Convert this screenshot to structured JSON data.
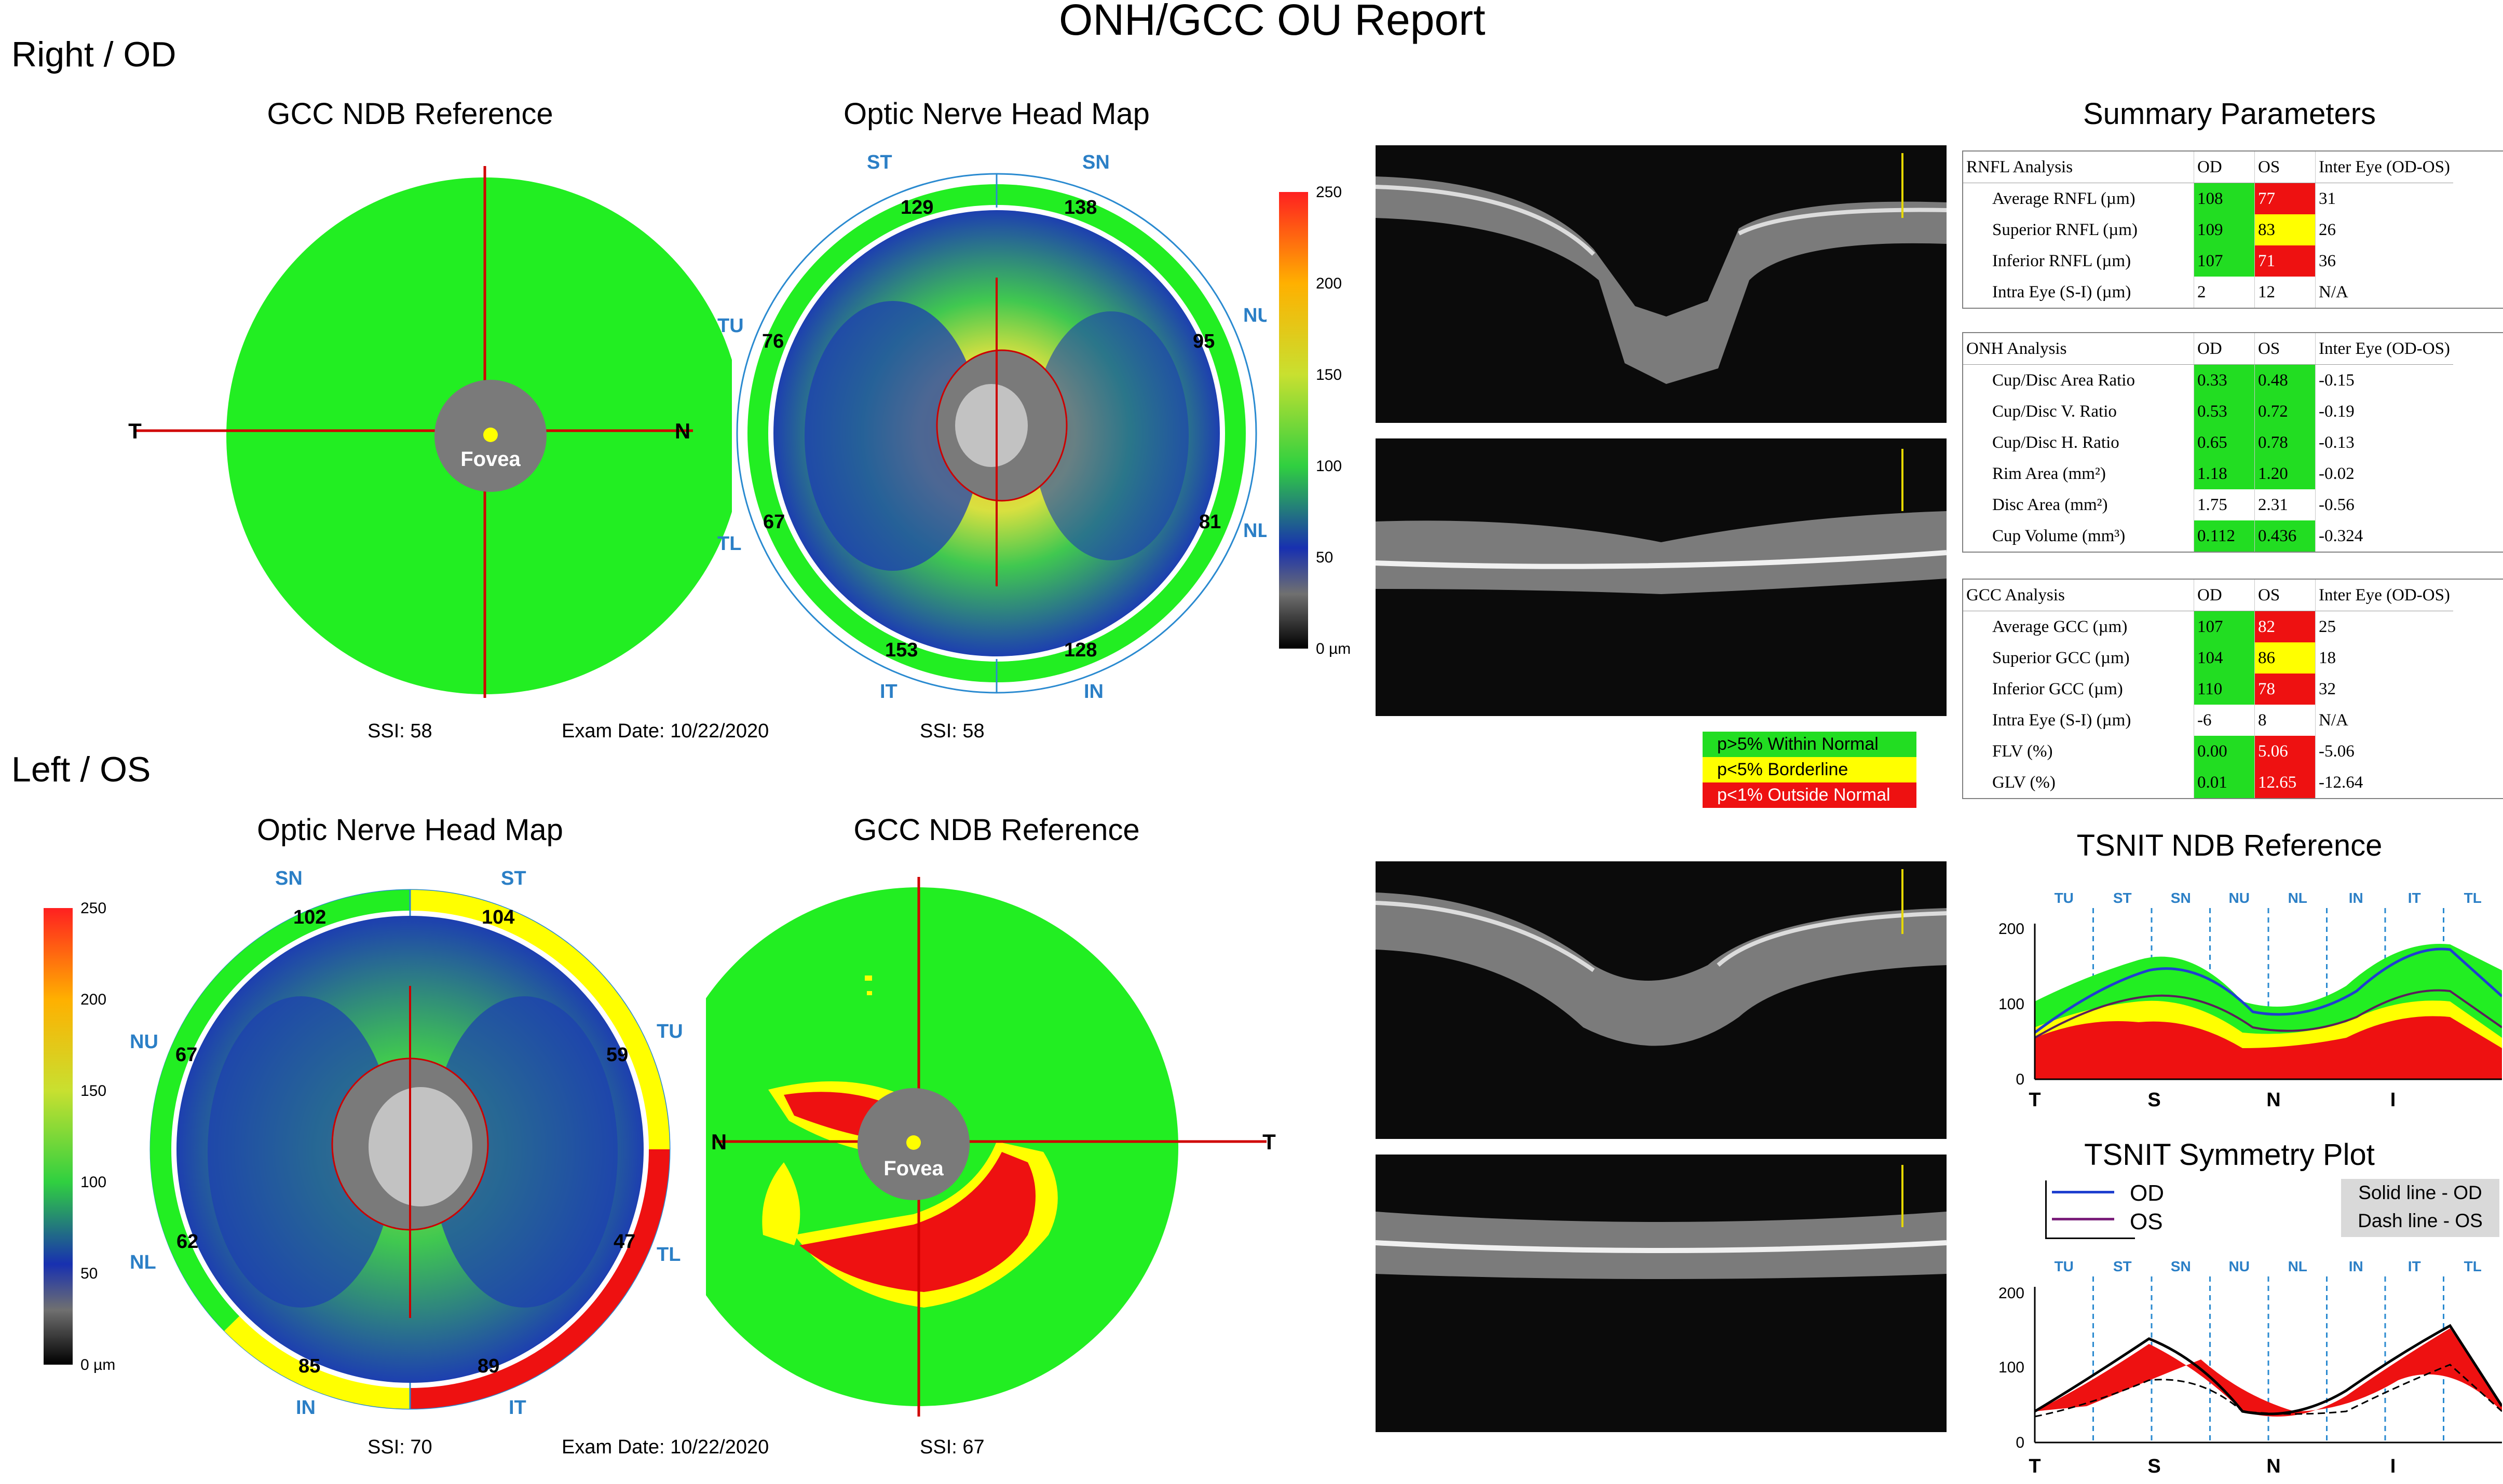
{
  "report_title": "ONH/GCC OU Report",
  "right": {
    "eye_label": "Right / OD",
    "gcc_title": "GCC NDB Reference",
    "onh_title": "Optic Nerve Head Map",
    "ssi_gcc": "SSI: 58",
    "exam_date": "Exam Date: 10/22/2020",
    "ssi_onh": "SSI: 58",
    "gcc_dir_left": "T",
    "gcc_dir_right": "N",
    "fovea": "Fovea",
    "onh_sectors": {
      "st": "ST",
      "sn": "SN",
      "nu": "NU",
      "nl": "NL",
      "in": "IN",
      "it": "IT",
      "tl": "TL",
      "tu": "TU"
    },
    "onh_values": {
      "st": "129",
      "sn": "138",
      "nu": "95",
      "nl": "81",
      "in": "128",
      "it": "153",
      "tl": "67",
      "tu": "76"
    }
  },
  "left": {
    "eye_label": "Left / OS",
    "onh_title": "Optic Nerve Head Map",
    "gcc_title": "GCC NDB Reference",
    "ssi_onh": "SSI: 70",
    "exam_date": "Exam Date: 10/22/2020",
    "ssi_gcc": "SSI: 67",
    "gcc_dir_left": "N",
    "gcc_dir_right": "T",
    "fovea": "Fovea",
    "onh_sectors": {
      "sn": "SN",
      "st": "ST",
      "tu": "TU",
      "tl": "TL",
      "it": "IT",
      "in": "IN",
      "nl": "NL",
      "nu": "NU"
    },
    "onh_values": {
      "sn": "102",
      "st": "104",
      "tu": "59",
      "tl": "47",
      "it": "89",
      "in": "85",
      "nl": "62",
      "nu": "67"
    }
  },
  "colorbar": {
    "ticks": [
      "250",
      "200",
      "150",
      "100",
      "50",
      "0 µm"
    ]
  },
  "legend": {
    "within": "p>5% Within Normal",
    "borderline": "p<5% Borderline",
    "outside": "p<1% Outside Normal",
    "colors": {
      "green": "#22dd22",
      "yellow": "#ffff00",
      "red": "#ee1111"
    }
  },
  "summary": {
    "title": "Summary Parameters",
    "rnfl": {
      "header": [
        "RNFL Analysis",
        "OD",
        "OS",
        "Inter Eye (OD-OS)"
      ],
      "rows": [
        {
          "label": "Average RNFL (µm)",
          "od": "108",
          "os": "77",
          "inter": "31",
          "odc": "g",
          "osc": "r"
        },
        {
          "label": "Superior RNFL (µm)",
          "od": "109",
          "os": "83",
          "inter": "26",
          "odc": "g",
          "osc": "y"
        },
        {
          "label": "Inferior RNFL (µm)",
          "od": "107",
          "os": "71",
          "inter": "36",
          "odc": "g",
          "osc": "r"
        },
        {
          "label": "Intra Eye (S-I) (µm)",
          "od": "2",
          "os": "12",
          "inter": "N/A",
          "odc": "",
          "osc": ""
        }
      ]
    },
    "onh": {
      "header": [
        "ONH Analysis",
        "OD",
        "OS",
        "Inter Eye (OD-OS)"
      ],
      "rows": [
        {
          "label": "Cup/Disc Area Ratio",
          "od": "0.33",
          "os": "0.48",
          "inter": "-0.15",
          "odc": "g",
          "osc": "g"
        },
        {
          "label": "Cup/Disc V. Ratio",
          "od": "0.53",
          "os": "0.72",
          "inter": "-0.19",
          "odc": "g",
          "osc": "g"
        },
        {
          "label": "Cup/Disc H. Ratio",
          "od": "0.65",
          "os": "0.78",
          "inter": "-0.13",
          "odc": "g",
          "osc": "g"
        },
        {
          "label": "Rim Area (mm²)",
          "od": "1.18",
          "os": "1.20",
          "inter": "-0.02",
          "odc": "g",
          "osc": "g"
        },
        {
          "label": "Disc Area (mm²)",
          "od": "1.75",
          "os": "2.31",
          "inter": "-0.56",
          "odc": "",
          "osc": ""
        },
        {
          "label": "Cup Volume (mm³)",
          "od": "0.112",
          "os": "0.436",
          "inter": "-0.324",
          "odc": "g",
          "osc": "g"
        }
      ]
    },
    "gcc": {
      "header": [
        "GCC Analysis",
        "OD",
        "OS",
        "Inter Eye (OD-OS)"
      ],
      "rows": [
        {
          "label": "Average GCC (µm)",
          "od": "107",
          "os": "82",
          "inter": "25",
          "odc": "g",
          "osc": "r"
        },
        {
          "label": "Superior GCC (µm)",
          "od": "104",
          "os": "86",
          "inter": "18",
          "odc": "g",
          "osc": "y"
        },
        {
          "label": "Inferior GCC (µm)",
          "od": "110",
          "os": "78",
          "inter": "32",
          "odc": "g",
          "osc": "r"
        },
        {
          "label": "Intra Eye (S-I) (µm)",
          "od": "-6",
          "os": "8",
          "inter": "N/A",
          "odc": "",
          "osc": ""
        },
        {
          "label": "FLV (%)",
          "od": "0.00",
          "os": "5.06",
          "inter": "-5.06",
          "odc": "g",
          "osc": "r"
        },
        {
          "label": "GLV (%)",
          "od": "0.01",
          "os": "12.65",
          "inter": "-12.64",
          "odc": "g",
          "osc": "r"
        }
      ]
    }
  },
  "tsnit_ndb": {
    "title": "TSNIT NDB Reference",
    "sectors": [
      "TU",
      "ST",
      "SN",
      "NU",
      "NL",
      "IN",
      "IT",
      "TL"
    ],
    "xticks": [
      "T",
      "S",
      "N",
      "I"
    ],
    "yticks": [
      "200",
      "100",
      "0"
    ]
  },
  "tsnit_sym": {
    "title": "TSNIT Symmetry Plot",
    "legend_od": "OD",
    "legend_os": "OS",
    "note_od": "Solid line - OD",
    "note_os": "Dash line - OS",
    "sectors": [
      "TU",
      "ST",
      "SN",
      "NU",
      "NL",
      "IN",
      "IT",
      "TL"
    ],
    "xticks": [
      "T",
      "S",
      "N",
      "I"
    ],
    "yticks": [
      "200",
      "100",
      "0"
    ]
  }
}
